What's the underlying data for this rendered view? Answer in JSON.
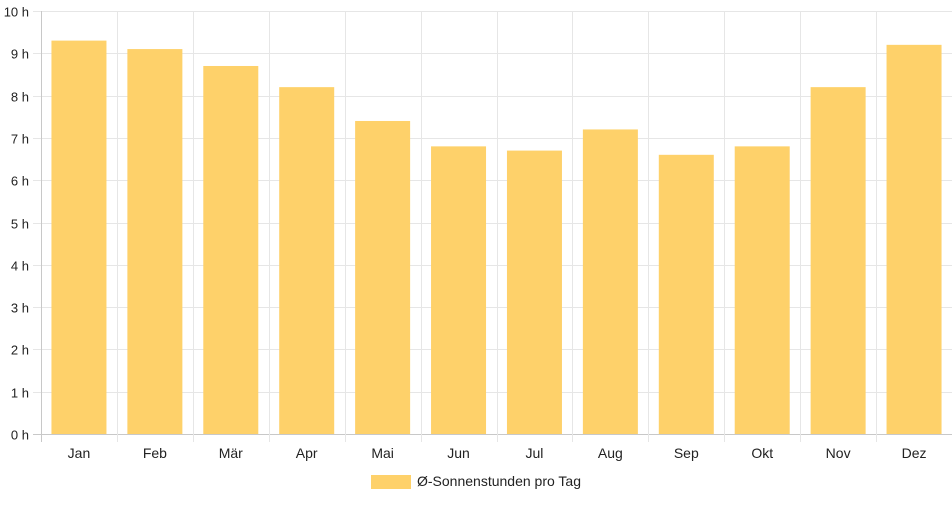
{
  "chart_data": {
    "type": "bar",
    "categories": [
      "Jan",
      "Feb",
      "Mär",
      "Apr",
      "Mai",
      "Jun",
      "Jul",
      "Aug",
      "Sep",
      "Okt",
      "Nov",
      "Dez"
    ],
    "series": [
      {
        "name": "Ø-Sonnenstunden pro Tag",
        "values": [
          9.3,
          9.1,
          8.7,
          8.2,
          7.4,
          6.8,
          6.7,
          7.2,
          6.6,
          6.8,
          8.2,
          9.2
        ],
        "color": "#FED16A"
      }
    ],
    "ylim": [
      0,
      10
    ],
    "yticks": [
      "0 h",
      "1 h",
      "2 h",
      "3 h",
      "4 h",
      "5 h",
      "6 h",
      "7 h",
      "8 h",
      "9 h",
      "10 h"
    ],
    "grid": true,
    "legend": "bottom-center"
  }
}
